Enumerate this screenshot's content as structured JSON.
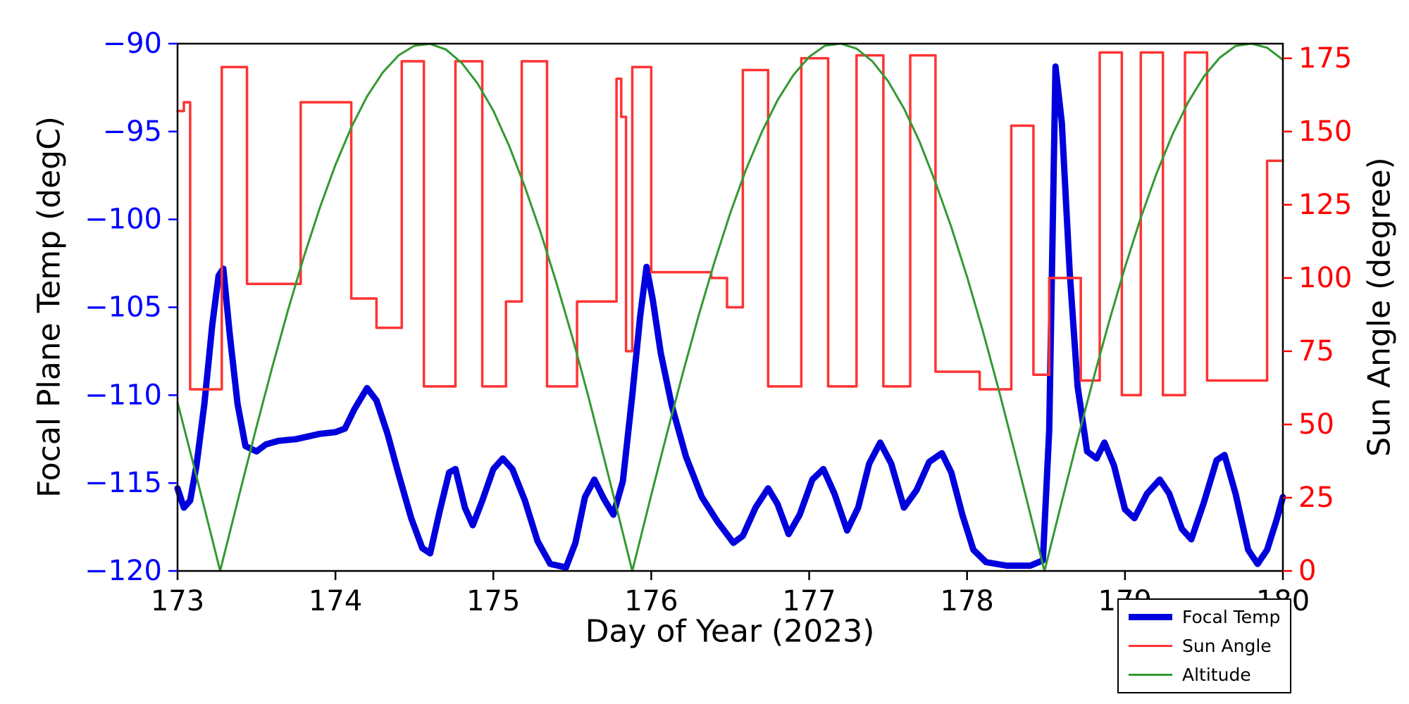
{
  "chart_data": {
    "type": "line",
    "xlabel": "Day of Year (2023)",
    "x_axis": {
      "min": 173,
      "max": 180,
      "ticks": [
        173,
        174,
        175,
        176,
        177,
        178,
        179,
        180
      ],
      "tick_labels": [
        "173",
        "174",
        "175",
        "176",
        "177",
        "178",
        "179",
        "180"
      ],
      "color": "#000000"
    },
    "left_axis": {
      "label": "Focal Plane Temp (degC)",
      "min": -120,
      "max": -90,
      "ticks": [
        -90,
        -95,
        -100,
        -105,
        -110,
        -115,
        -120
      ],
      "tick_labels": [
        "−90",
        "−95",
        "−100",
        "−105",
        "−110",
        "−115",
        "−120"
      ],
      "color": "#0000ff"
    },
    "right_axis": {
      "label": "Sun Angle (degree)",
      "min": 0,
      "max": 180,
      "ticks": [
        0,
        25,
        50,
        75,
        100,
        125,
        150,
        175
      ],
      "tick_labels": [
        "0",
        "25",
        "50",
        "75",
        "100",
        "125",
        "150",
        "175"
      ],
      "color": "#ff0000"
    },
    "grid": false,
    "legend": {
      "position": "lower-right-outside",
      "entries": [
        {
          "label": "Focal Temp",
          "color": "#0000dd",
          "line_width": 9
        },
        {
          "label": "Sun Angle",
          "color": "#ff3333",
          "line_width": 3.5
        },
        {
          "label": "Altitude",
          "color": "#339933",
          "line_width": 3
        }
      ]
    },
    "series": [
      {
        "name": "Focal Temp",
        "axis": "left",
        "color": "#0000dd",
        "width": 9,
        "points": [
          [
            173.0,
            -115.3
          ],
          [
            173.04,
            -116.4
          ],
          [
            173.08,
            -116.0
          ],
          [
            173.12,
            -114.0
          ],
          [
            173.17,
            -110.5
          ],
          [
            173.22,
            -106.0
          ],
          [
            173.26,
            -103.2
          ],
          [
            173.29,
            -102.8
          ],
          [
            173.33,
            -106.5
          ],
          [
            173.38,
            -110.5
          ],
          [
            173.43,
            -112.9
          ],
          [
            173.5,
            -113.2
          ],
          [
            173.56,
            -112.8
          ],
          [
            173.64,
            -112.6
          ],
          [
            173.75,
            -112.5
          ],
          [
            173.9,
            -112.2
          ],
          [
            174.0,
            -112.1
          ],
          [
            174.06,
            -111.9
          ],
          [
            174.12,
            -110.8
          ],
          [
            174.2,
            -109.6
          ],
          [
            174.26,
            -110.3
          ],
          [
            174.33,
            -112.2
          ],
          [
            174.4,
            -114.5
          ],
          [
            174.48,
            -117.0
          ],
          [
            174.55,
            -118.7
          ],
          [
            174.6,
            -119.0
          ],
          [
            174.66,
            -116.6
          ],
          [
            174.72,
            -114.4
          ],
          [
            174.76,
            -114.2
          ],
          [
            174.82,
            -116.4
          ],
          [
            174.87,
            -117.4
          ],
          [
            174.93,
            -116.0
          ],
          [
            175.0,
            -114.2
          ],
          [
            175.06,
            -113.6
          ],
          [
            175.12,
            -114.2
          ],
          [
            175.2,
            -116.0
          ],
          [
            175.28,
            -118.3
          ],
          [
            175.36,
            -119.6
          ],
          [
            175.46,
            -119.8
          ],
          [
            175.52,
            -118.4
          ],
          [
            175.58,
            -115.8
          ],
          [
            175.64,
            -114.8
          ],
          [
            175.7,
            -115.9
          ],
          [
            175.76,
            -116.8
          ],
          [
            175.82,
            -114.9
          ],
          [
            175.88,
            -110.0
          ],
          [
            175.93,
            -105.5
          ],
          [
            175.97,
            -102.7
          ],
          [
            176.01,
            -104.6
          ],
          [
            176.06,
            -107.6
          ],
          [
            176.13,
            -110.6
          ],
          [
            176.22,
            -113.5
          ],
          [
            176.32,
            -115.8
          ],
          [
            176.42,
            -117.2
          ],
          [
            176.52,
            -118.4
          ],
          [
            176.58,
            -118.0
          ],
          [
            176.66,
            -116.4
          ],
          [
            176.74,
            -115.3
          ],
          [
            176.8,
            -116.2
          ],
          [
            176.87,
            -117.9
          ],
          [
            176.94,
            -116.8
          ],
          [
            177.02,
            -114.8
          ],
          [
            177.09,
            -114.2
          ],
          [
            177.16,
            -115.6
          ],
          [
            177.24,
            -117.7
          ],
          [
            177.31,
            -116.4
          ],
          [
            177.38,
            -113.9
          ],
          [
            177.45,
            -112.7
          ],
          [
            177.52,
            -113.9
          ],
          [
            177.6,
            -116.4
          ],
          [
            177.68,
            -115.4
          ],
          [
            177.76,
            -113.8
          ],
          [
            177.84,
            -113.3
          ],
          [
            177.9,
            -114.4
          ],
          [
            177.97,
            -116.8
          ],
          [
            178.04,
            -118.8
          ],
          [
            178.12,
            -119.5
          ],
          [
            178.25,
            -119.7
          ],
          [
            178.4,
            -119.7
          ],
          [
            178.48,
            -119.4
          ],
          [
            178.52,
            -112.0
          ],
          [
            178.56,
            -91.3
          ],
          [
            178.6,
            -94.5
          ],
          [
            178.65,
            -103.0
          ],
          [
            178.7,
            -109.5
          ],
          [
            178.76,
            -113.2
          ],
          [
            178.82,
            -113.6
          ],
          [
            178.87,
            -112.7
          ],
          [
            178.93,
            -114.0
          ],
          [
            179.0,
            -116.5
          ],
          [
            179.06,
            -117.0
          ],
          [
            179.14,
            -115.6
          ],
          [
            179.22,
            -114.8
          ],
          [
            179.28,
            -115.6
          ],
          [
            179.36,
            -117.6
          ],
          [
            179.42,
            -118.2
          ],
          [
            179.5,
            -116.1
          ],
          [
            179.58,
            -113.7
          ],
          [
            179.63,
            -113.4
          ],
          [
            179.7,
            -115.6
          ],
          [
            179.78,
            -118.8
          ],
          [
            179.84,
            -119.6
          ],
          [
            179.9,
            -118.8
          ],
          [
            179.96,
            -117.1
          ],
          [
            180.0,
            -115.8
          ]
        ]
      },
      {
        "name": "Sun Angle",
        "axis": "right",
        "color": "#ff3333",
        "width": 3.5,
        "points": [
          [
            173.0,
            157
          ],
          [
            173.04,
            157
          ],
          [
            173.04,
            160
          ],
          [
            173.08,
            160
          ],
          [
            173.08,
            62
          ],
          [
            173.28,
            62
          ],
          [
            173.28,
            172
          ],
          [
            173.44,
            172
          ],
          [
            173.44,
            98
          ],
          [
            173.78,
            98
          ],
          [
            173.78,
            160
          ],
          [
            174.1,
            160
          ],
          [
            174.1,
            93
          ],
          [
            174.26,
            93
          ],
          [
            174.26,
            83
          ],
          [
            174.42,
            83
          ],
          [
            174.42,
            174
          ],
          [
            174.56,
            174
          ],
          [
            174.56,
            63
          ],
          [
            174.76,
            63
          ],
          [
            174.76,
            174
          ],
          [
            174.93,
            174
          ],
          [
            174.93,
            63
          ],
          [
            175.08,
            63
          ],
          [
            175.08,
            92
          ],
          [
            175.18,
            92
          ],
          [
            175.18,
            174
          ],
          [
            175.34,
            174
          ],
          [
            175.34,
            63
          ],
          [
            175.53,
            63
          ],
          [
            175.53,
            92
          ],
          [
            175.78,
            92
          ],
          [
            175.78,
            168
          ],
          [
            175.81,
            168
          ],
          [
            175.81,
            155
          ],
          [
            175.84,
            155
          ],
          [
            175.84,
            75
          ],
          [
            175.88,
            75
          ],
          [
            175.88,
            172
          ],
          [
            176.0,
            172
          ],
          [
            176.0,
            102
          ],
          [
            176.38,
            102
          ],
          [
            176.38,
            100
          ],
          [
            176.48,
            100
          ],
          [
            176.48,
            90
          ],
          [
            176.58,
            90
          ],
          [
            176.58,
            171
          ],
          [
            176.74,
            171
          ],
          [
            176.74,
            63
          ],
          [
            176.95,
            63
          ],
          [
            176.95,
            175
          ],
          [
            177.12,
            175
          ],
          [
            177.12,
            63
          ],
          [
            177.3,
            63
          ],
          [
            177.3,
            176
          ],
          [
            177.47,
            176
          ],
          [
            177.47,
            63
          ],
          [
            177.64,
            63
          ],
          [
            177.64,
            176
          ],
          [
            177.8,
            176
          ],
          [
            177.8,
            68
          ],
          [
            178.08,
            68
          ],
          [
            178.08,
            62
          ],
          [
            178.28,
            62
          ],
          [
            178.28,
            152
          ],
          [
            178.42,
            152
          ],
          [
            178.42,
            67
          ],
          [
            178.52,
            67
          ],
          [
            178.52,
            100
          ],
          [
            178.72,
            100
          ],
          [
            178.72,
            65
          ],
          [
            178.84,
            65
          ],
          [
            178.84,
            177
          ],
          [
            178.98,
            177
          ],
          [
            178.98,
            60
          ],
          [
            179.1,
            60
          ],
          [
            179.1,
            177
          ],
          [
            179.24,
            177
          ],
          [
            179.24,
            60
          ],
          [
            179.38,
            60
          ],
          [
            179.38,
            177
          ],
          [
            179.52,
            177
          ],
          [
            179.52,
            65
          ],
          [
            179.9,
            65
          ],
          [
            179.9,
            140
          ],
          [
            180.0,
            140
          ]
        ]
      },
      {
        "name": "Altitude",
        "axis": "right",
        "color": "#339933",
        "width": 3,
        "points": [
          [
            173.0,
            57.5
          ],
          [
            173.1,
            36.6
          ],
          [
            173.2,
            15.1
          ],
          [
            173.27,
            0
          ],
          [
            173.3,
            6.5
          ],
          [
            173.4,
            28.0
          ],
          [
            173.5,
            49.2
          ],
          [
            173.6,
            69.6
          ],
          [
            173.7,
            89.1
          ],
          [
            173.8,
            107.2
          ],
          [
            173.9,
            123.8
          ],
          [
            174.0,
            138.6
          ],
          [
            174.1,
            151.4
          ],
          [
            174.2,
            162.0
          ],
          [
            174.3,
            170.2
          ],
          [
            174.4,
            176.0
          ],
          [
            174.5,
            179.3
          ],
          [
            174.6,
            179.9
          ],
          [
            174.7,
            178.0
          ],
          [
            174.8,
            173.4
          ],
          [
            174.9,
            166.4
          ],
          [
            175.0,
            157.1
          ],
          [
            175.1,
            145.1
          ],
          [
            175.2,
            131.1
          ],
          [
            175.3,
            115.5
          ],
          [
            175.4,
            98.3
          ],
          [
            175.5,
            79.8
          ],
          [
            175.6,
            59.9
          ],
          [
            175.7,
            38.7
          ],
          [
            175.8,
            17.3
          ],
          [
            175.88,
            0
          ],
          [
            175.9,
            4.3
          ],
          [
            176.0,
            25.9
          ],
          [
            176.1,
            47.0
          ],
          [
            176.2,
            67.6
          ],
          [
            176.3,
            87.2
          ],
          [
            176.4,
            105.4
          ],
          [
            176.5,
            122.1
          ],
          [
            176.6,
            137.0
          ],
          [
            176.7,
            149.8
          ],
          [
            176.8,
            160.7
          ],
          [
            176.9,
            169.3
          ],
          [
            177.0,
            175.5
          ],
          [
            177.1,
            179.3
          ],
          [
            177.2,
            180.0
          ],
          [
            177.3,
            178.3
          ],
          [
            177.4,
            174.0
          ],
          [
            177.5,
            167.2
          ],
          [
            177.6,
            157.9
          ],
          [
            177.7,
            146.4
          ],
          [
            177.8,
            132.6
          ],
          [
            177.9,
            117.4
          ],
          [
            178.0,
            100.4
          ],
          [
            178.1,
            81.9
          ],
          [
            178.2,
            62.0
          ],
          [
            178.3,
            40.9
          ],
          [
            178.4,
            19.5
          ],
          [
            178.49,
            0
          ],
          [
            178.5,
            2.1
          ],
          [
            178.6,
            23.7
          ],
          [
            178.7,
            45.0
          ],
          [
            178.8,
            65.6
          ],
          [
            178.9,
            85.2
          ],
          [
            179.0,
            103.7
          ],
          [
            179.1,
            120.6
          ],
          [
            179.2,
            135.7
          ],
          [
            179.3,
            148.9
          ],
          [
            179.4,
            160.0
          ],
          [
            179.5,
            168.8
          ],
          [
            179.6,
            175.2
          ],
          [
            179.7,
            179.2
          ],
          [
            179.8,
            180.0
          ],
          [
            179.9,
            178.6
          ],
          [
            180.0,
            174.5
          ]
        ]
      }
    ]
  }
}
